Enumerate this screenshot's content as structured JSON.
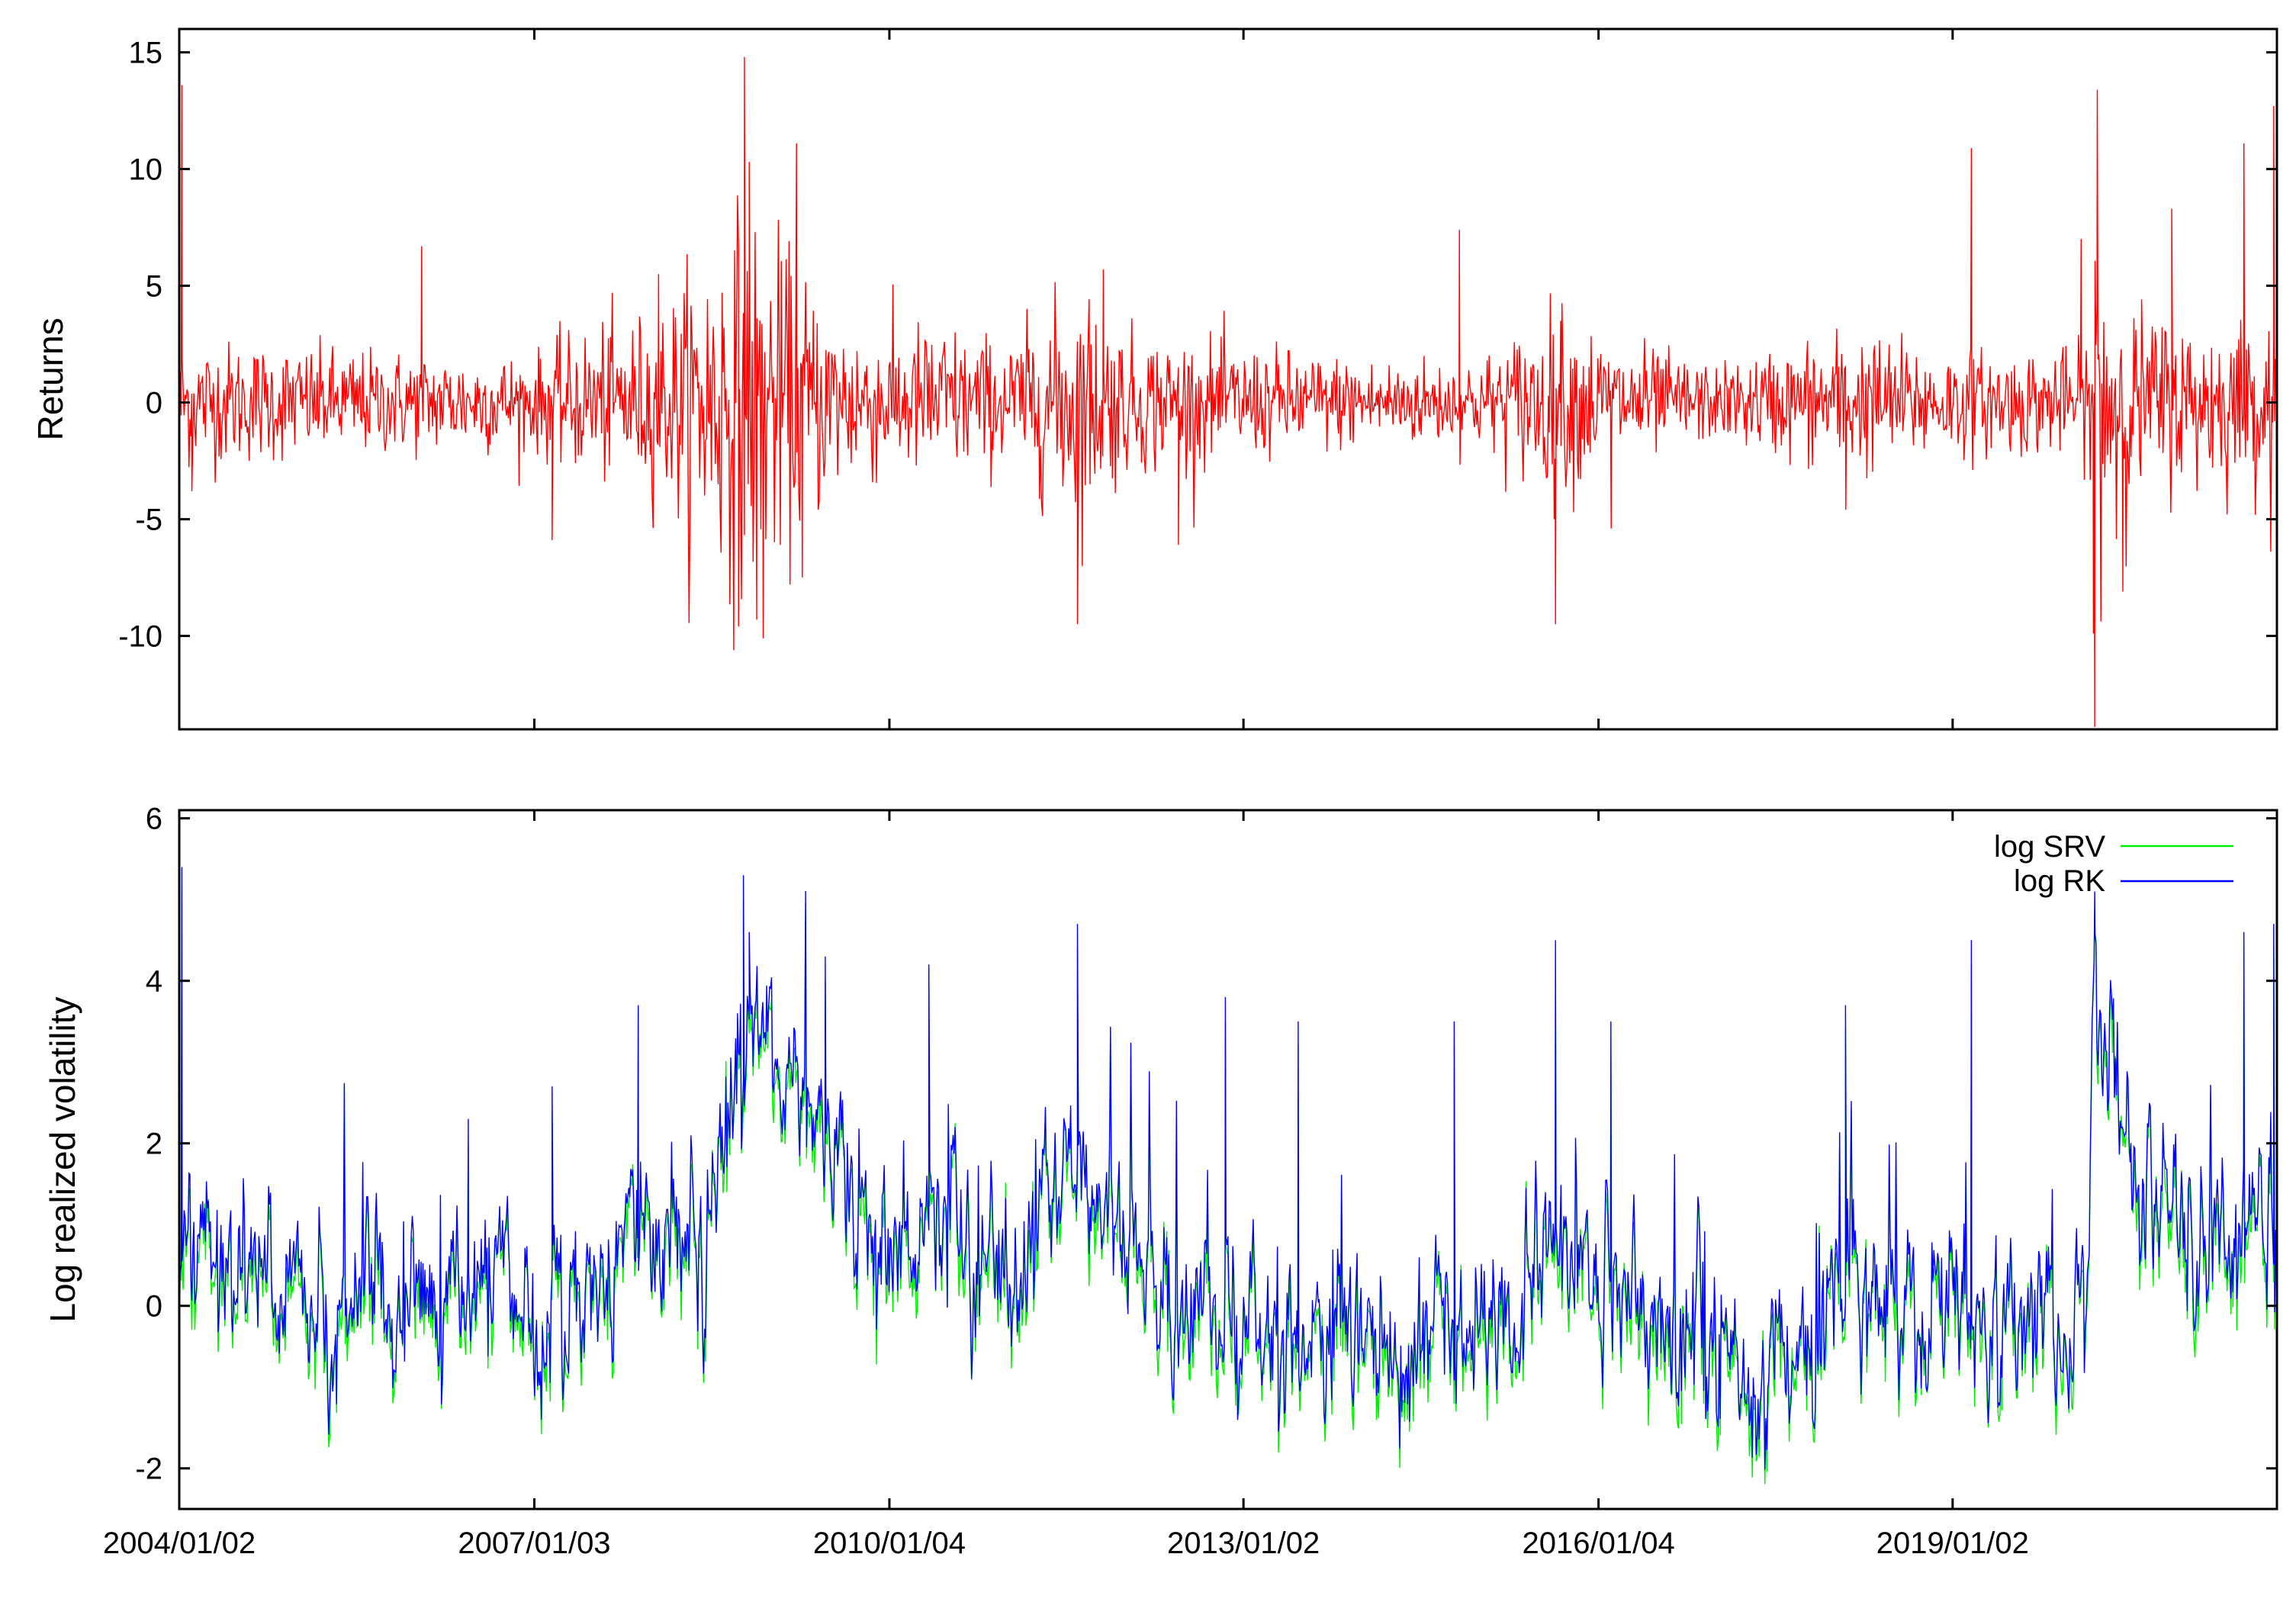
{
  "colors": {
    "returns": "#ff0000",
    "log_srv": "#00ee00",
    "log_rk": "#0000ff",
    "axis": "#000000",
    "background": "#ffffff"
  },
  "chart_data": [
    {
      "type": "line",
      "ylabel": "Returns",
      "xlabel": "",
      "ylim": [
        -14,
        16
      ],
      "yticks": [
        15,
        10,
        5,
        0,
        -5,
        -10
      ],
      "ytick_labels": [
        "15",
        "10",
        "5",
        "0",
        "-5",
        "-10"
      ],
      "xlim": [
        "2004/01/02",
        "2021/09/30"
      ],
      "xticks": [
        "2004/01/02",
        "2007/01/03",
        "2010/01/04",
        "2013/01/02",
        "2016/01/04",
        "2019/01/02"
      ],
      "xtick_labels_shown": false,
      "grid": false,
      "series": [
        {
          "color": "#ff0000",
          "sampling": "daily; shape summarized by piecewise volatility regimes and notable spikes",
          "volatility_profile": [
            {
              "x": "2004/01/02",
              "amp": 1.6
            },
            {
              "x": "2005/06/30",
              "amp": 1.3
            },
            {
              "x": "2007/01/03",
              "amp": 1.2
            },
            {
              "x": "2007/07/01",
              "amp": 1.9
            },
            {
              "x": "2008/01/15",
              "amp": 2.2
            },
            {
              "x": "2008/09/15",
              "amp": 4.8
            },
            {
              "x": "2008/12/31",
              "amp": 4.2
            },
            {
              "x": "2009/06/30",
              "amp": 2.4
            },
            {
              "x": "2010/01/04",
              "amp": 1.8
            },
            {
              "x": "2010/06/01",
              "amp": 2.0
            },
            {
              "x": "2011/01/01",
              "amp": 1.5
            },
            {
              "x": "2011/08/10",
              "amp": 3.0
            },
            {
              "x": "2012/01/01",
              "amp": 1.8
            },
            {
              "x": "2013/01/02",
              "amp": 1.4
            },
            {
              "x": "2014/01/01",
              "amp": 1.1
            },
            {
              "x": "2015/01/01",
              "amp": 1.1
            },
            {
              "x": "2015/08/25",
              "amp": 2.4
            },
            {
              "x": "2016/01/04",
              "amp": 1.7
            },
            {
              "x": "2017/01/01",
              "amp": 0.9
            },
            {
              "x": "2018/02/06",
              "amp": 1.8
            },
            {
              "x": "2019/01/02",
              "amp": 1.3
            },
            {
              "x": "2020/02/15",
              "amp": 1.3
            },
            {
              "x": "2020/03/20",
              "amp": 5.0
            },
            {
              "x": "2020/06/30",
              "amp": 2.4
            },
            {
              "x": "2021/01/01",
              "amp": 2.0
            },
            {
              "x": "2021/09/30",
              "amp": 2.0
            }
          ],
          "spikes": [
            {
              "x": "2004/01/10",
              "y": 13.6
            },
            {
              "x": "2004/02/10",
              "y": -3.8
            },
            {
              "x": "2006/01/20",
              "y": 6.7
            },
            {
              "x": "2007/02/27",
              "y": -5.9
            },
            {
              "x": "2008/01/22",
              "y": 5.5
            },
            {
              "x": "2008/09/25",
              "y": -9.6
            },
            {
              "x": "2008/10/13",
              "y": 14.8
            },
            {
              "x": "2008/10/28",
              "y": 10.3
            },
            {
              "x": "2008/11/20",
              "y": -9.3
            },
            {
              "x": "2008/12/10",
              "y": -10.1
            },
            {
              "x": "2009/03/23",
              "y": 11.1
            },
            {
              "x": "2009/04/10",
              "y": -7.5
            },
            {
              "x": "2011/08/08",
              "y": -9.5
            },
            {
              "x": "2011/10/27",
              "y": 5.7
            },
            {
              "x": "2012/06/15",
              "y": -6.1
            },
            {
              "x": "2014/10/31",
              "y": 7.4
            },
            {
              "x": "2015/08/24",
              "y": -9.5
            },
            {
              "x": "2015/09/09",
              "y": 3.5
            },
            {
              "x": "2016/02/12",
              "y": -5.4
            },
            {
              "x": "2018/02/06",
              "y": -4.6
            },
            {
              "x": "2019/03/01",
              "y": 10.9
            },
            {
              "x": "2020/02/03",
              "y": 7.0
            },
            {
              "x": "2020/03/16",
              "y": -13.9
            },
            {
              "x": "2020/03/24",
              "y": 13.4
            },
            {
              "x": "2020/03/12",
              "y": -9.9
            },
            {
              "x": "2020/06/11",
              "y": -8.1
            },
            {
              "x": "2020/11/09",
              "y": 8.3
            },
            {
              "x": "2021/06/20",
              "y": 11.1
            },
            {
              "x": "2021/09/20",
              "y": 12.7
            }
          ]
        }
      ]
    },
    {
      "type": "line",
      "ylabel": "Log realized volatility",
      "xlabel": "",
      "ylim": [
        -2.5,
        6.1
      ],
      "yticks": [
        6,
        4,
        2,
        0,
        -2
      ],
      "ytick_labels": [
        "6",
        "4",
        "2",
        "0",
        "-2"
      ],
      "xlim": [
        "2004/01/02",
        "2021/09/30"
      ],
      "xticks": [
        "2004/01/02",
        "2007/01/03",
        "2010/01/04",
        "2013/01/02",
        "2016/01/04",
        "2019/01/02"
      ],
      "xtick_labels": [
        "2004/01/02",
        "2007/01/03",
        "2010/01/04",
        "2013/01/02",
        "2016/01/04",
        "2019/01/02"
      ],
      "grid": false,
      "legend_position": "top-right",
      "level_profile": [
        {
          "x": "2004/01/02",
          "y": 0.9
        },
        {
          "x": "2004/06/01",
          "y": 0.5
        },
        {
          "x": "2005/01/01",
          "y": 0.2
        },
        {
          "x": "2006/01/01",
          "y": 0.0
        },
        {
          "x": "2006/06/15",
          "y": 0.3
        },
        {
          "x": "2007/01/03",
          "y": -0.3
        },
        {
          "x": "2007/08/01",
          "y": 0.6
        },
        {
          "x": "2008/01/15",
          "y": 0.9
        },
        {
          "x": "2008/06/01",
          "y": 0.7
        },
        {
          "x": "2008/10/10",
          "y": 3.3
        },
        {
          "x": "2008/12/31",
          "y": 3.2
        },
        {
          "x": "2009/06/30",
          "y": 2.0
        },
        {
          "x": "2010/01/04",
          "y": 0.6
        },
        {
          "x": "2010/05/20",
          "y": 1.2
        },
        {
          "x": "2011/01/01",
          "y": 0.2
        },
        {
          "x": "2011/08/10",
          "y": 1.8
        },
        {
          "x": "2012/01/01",
          "y": 0.7
        },
        {
          "x": "2012/06/01",
          "y": -0.2
        },
        {
          "x": "2013/01/02",
          "y": -0.1
        },
        {
          "x": "2014/01/01",
          "y": -0.5
        },
        {
          "x": "2015/01/01",
          "y": -0.3
        },
        {
          "x": "2015/08/25",
          "y": 0.6
        },
        {
          "x": "2016/01/04",
          "y": 0.5
        },
        {
          "x": "2017/01/01",
          "y": -0.9
        },
        {
          "x": "2017/06/01",
          "y": -1.1
        },
        {
          "x": "2018/02/06",
          "y": 0.2
        },
        {
          "x": "2019/01/02",
          "y": -0.2
        },
        {
          "x": "2020/02/15",
          "y": -0.4
        },
        {
          "x": "2020/03/16",
          "y": 4.2
        },
        {
          "x": "2020/06/30",
          "y": 1.8
        },
        {
          "x": "2021/01/01",
          "y": 0.8
        },
        {
          "x": "2021/09/30",
          "y": 0.7
        }
      ],
      "series": [
        {
          "name": "log SRV",
          "color": "#00ee00",
          "offset_from_rk": -0.15
        },
        {
          "name": "log RK",
          "color": "#0000ff",
          "spikes": [
            {
              "x": "2004/01/10",
              "y": 5.4
            },
            {
              "x": "2006/06/13",
              "y": 2.3
            },
            {
              "x": "2007/02/27",
              "y": 2.7
            },
            {
              "x": "2007/11/20",
              "y": 3.7
            },
            {
              "x": "2008/10/10",
              "y": 5.3
            },
            {
              "x": "2008/10/28",
              "y": 4.6
            },
            {
              "x": "2009/06/20",
              "y": 4.3
            },
            {
              "x": "2010/05/06",
              "y": 4.2
            },
            {
              "x": "2011/08/08",
              "y": 4.7
            },
            {
              "x": "2012/11/07",
              "y": 3.8
            },
            {
              "x": "2013/06/20",
              "y": 3.5
            },
            {
              "x": "2014/10/15",
              "y": 3.5
            },
            {
              "x": "2015/08/24",
              "y": 4.5
            },
            {
              "x": "2016/02/11",
              "y": 3.5
            },
            {
              "x": "2018/02/05",
              "y": 3.7
            },
            {
              "x": "2019/03/01",
              "y": 4.5
            },
            {
              "x": "2020/03/16",
              "y": 5.1
            },
            {
              "x": "2021/06/20",
              "y": 4.6
            },
            {
              "x": "2021/09/20",
              "y": 4.7
            }
          ]
        }
      ]
    }
  ]
}
